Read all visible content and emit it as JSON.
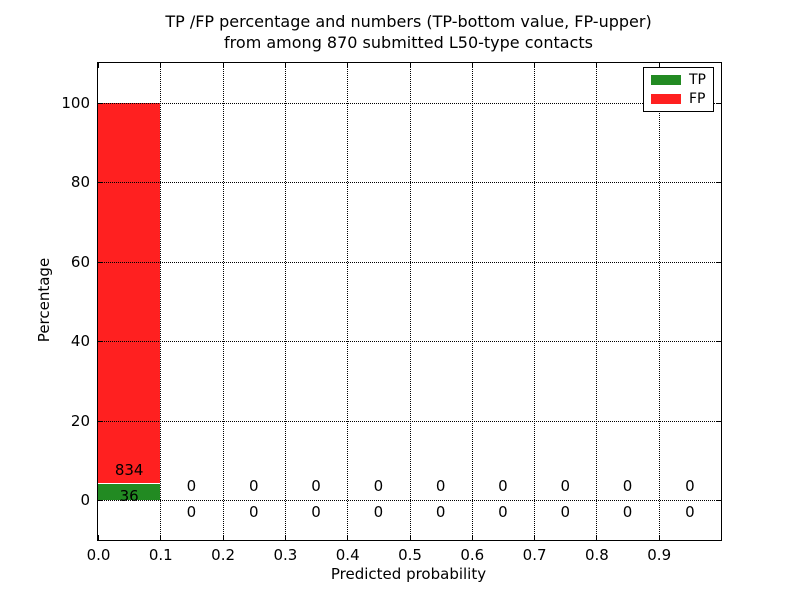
{
  "chart_data": {
    "type": "bar",
    "stacked": true,
    "title_line1": "TP /FP percentage and numbers (TP-bottom value, FP-upper)",
    "title_line2": "from among 870 submitted L50-type contacts",
    "xlabel": "Predicted probability",
    "ylabel": "Percentage",
    "xlim": [
      0.0,
      1.0
    ],
    "ylim": [
      -10,
      110
    ],
    "x_ticks": [
      "0.0",
      "0.1",
      "0.2",
      "0.3",
      "0.4",
      "0.5",
      "0.6",
      "0.7",
      "0.8",
      "0.9"
    ],
    "y_ticks": [
      0,
      20,
      40,
      60,
      80,
      100
    ],
    "grid": "dotted",
    "legend_position": "upper-right",
    "total_submitted": 870,
    "legend": [
      {
        "label": "TP",
        "color": "#228a22"
      },
      {
        "label": "FP",
        "color": "#ff2020"
      }
    ],
    "bins": [
      {
        "range": [
          0.0,
          0.1
        ],
        "tp": 36,
        "fp": 834
      },
      {
        "range": [
          0.1,
          0.2
        ],
        "tp": 0,
        "fp": 0
      },
      {
        "range": [
          0.2,
          0.3
        ],
        "tp": 0,
        "fp": 0
      },
      {
        "range": [
          0.3,
          0.4
        ],
        "tp": 0,
        "fp": 0
      },
      {
        "range": [
          0.4,
          0.5
        ],
        "tp": 0,
        "fp": 0
      },
      {
        "range": [
          0.5,
          0.6
        ],
        "tp": 0,
        "fp": 0
      },
      {
        "range": [
          0.6,
          0.7
        ],
        "tp": 0,
        "fp": 0
      },
      {
        "range": [
          0.7,
          0.8
        ],
        "tp": 0,
        "fp": 0
      },
      {
        "range": [
          0.8,
          0.9
        ],
        "tp": 0,
        "fp": 0
      },
      {
        "range": [
          0.9,
          1.0
        ],
        "tp": 0,
        "fp": 0
      }
    ]
  }
}
